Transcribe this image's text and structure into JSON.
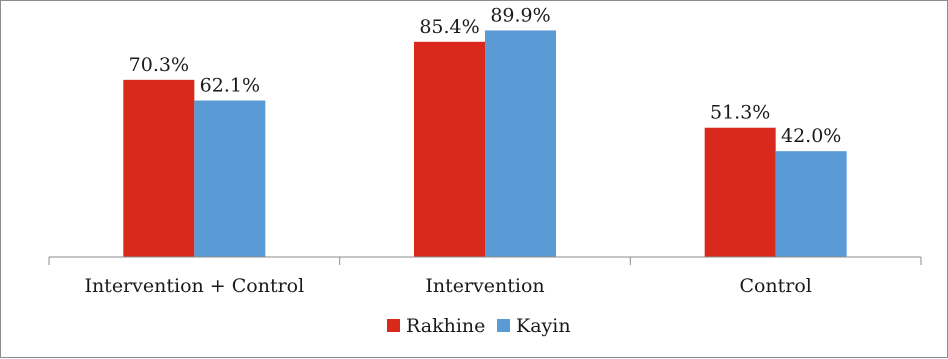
{
  "chart_data": {
    "type": "bar",
    "categories": [
      "Intervention + Control",
      "Intervention",
      "Control"
    ],
    "series": [
      {
        "name": "Rakhine",
        "values": [
          70.3,
          85.4,
          51.3
        ],
        "labels": [
          "70.3%",
          "85.4%",
          "51.3%"
        ],
        "color": "#d9291c"
      },
      {
        "name": "Kayin",
        "values": [
          62.1,
          89.9,
          42.0
        ],
        "labels": [
          "62.1%",
          "89.9%",
          "42.0%"
        ],
        "color": "#5b9bd5"
      }
    ],
    "title": "",
    "xlabel": "",
    "ylabel": "",
    "ylim": [
      0,
      100
    ],
    "grid": false,
    "legend": "bottom"
  }
}
